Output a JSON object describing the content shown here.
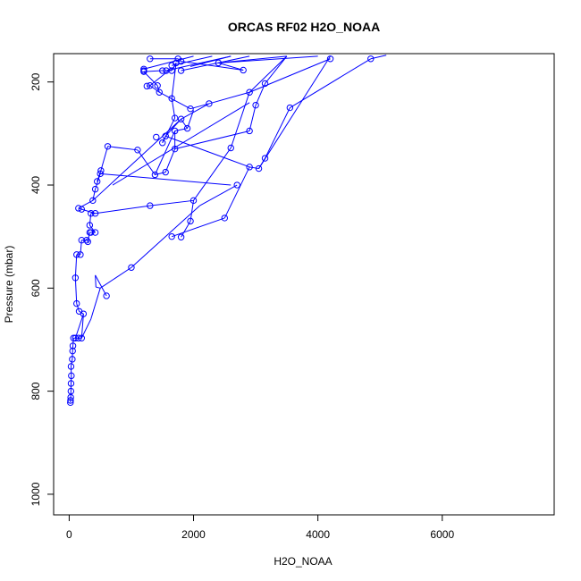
{
  "chart_data": {
    "type": "line",
    "title": "ORCAS RF02 H2O_NOAA",
    "xlabel": "H2O_NOAA",
    "ylabel": "Pressure (mbar)",
    "xlim": [
      -250,
      7800
    ],
    "ylim": [
      1040,
      145
    ],
    "y_reversed": true,
    "x_ticks": [
      0,
      2000,
      4000,
      6000
    ],
    "y_ticks": [
      200,
      400,
      600,
      800,
      1000
    ],
    "grid": false,
    "colors": {
      "series": "#0000ff",
      "axes": "#000000"
    },
    "series": [
      {
        "marker": "open-circle",
        "points": [
          [
            20,
            822
          ],
          [
            22,
            818
          ],
          [
            25,
            812
          ],
          [
            28,
            800
          ],
          [
            30,
            785
          ],
          [
            35,
            770
          ],
          [
            30,
            752
          ],
          [
            50,
            738
          ],
          [
            55,
            722
          ],
          [
            60,
            712
          ],
          [
            70,
            697
          ],
          [
            100,
            697
          ],
          [
            150,
            697
          ],
          [
            200,
            697
          ],
          [
            230,
            650
          ],
          [
            160,
            645
          ],
          [
            120,
            630
          ],
          [
            100,
            580
          ],
          [
            120,
            535
          ],
          [
            180,
            535
          ],
          [
            200,
            507
          ],
          [
            280,
            507
          ],
          [
            300,
            510
          ],
          [
            330,
            492
          ],
          [
            350,
            492
          ],
          [
            420,
            492
          ],
          [
            330,
            478
          ],
          [
            350,
            455
          ],
          [
            420,
            455
          ],
          [
            200,
            447
          ],
          [
            150,
            445
          ],
          [
            380,
            430
          ],
          [
            420,
            408
          ],
          [
            500,
            378
          ],
          [
            450,
            393
          ],
          [
            510,
            372
          ],
          [
            620,
            325
          ],
          [
            1100,
            332
          ],
          [
            1380,
            380
          ],
          [
            1550,
            375
          ],
          [
            1700,
            330
          ],
          [
            1700,
            295
          ],
          [
            1900,
            290
          ],
          [
            1800,
            272
          ],
          [
            1000,
            560
          ],
          [
            600,
            615
          ],
          [
            1650,
            500
          ],
          [
            1800,
            501
          ],
          [
            2000,
            430
          ],
          [
            1950,
            470
          ],
          [
            2500,
            464
          ],
          [
            2700,
            400
          ],
          [
            2900,
            365
          ],
          [
            3050,
            368
          ],
          [
            3150,
            348
          ],
          [
            2900,
            295
          ],
          [
            2600,
            328
          ],
          [
            2900,
            220
          ],
          [
            3000,
            245
          ],
          [
            3150,
            203
          ],
          [
            3550,
            250
          ],
          [
            4850,
            155
          ],
          [
            4200,
            155
          ],
          [
            2800,
            177
          ],
          [
            2400,
            163
          ],
          [
            1950,
            252
          ],
          [
            2250,
            242
          ],
          [
            1500,
            318
          ],
          [
            1550,
            305
          ],
          [
            1400,
            307
          ],
          [
            1300,
            440
          ],
          [
            1250,
            208
          ],
          [
            1300,
            207
          ],
          [
            1450,
            220
          ],
          [
            1420,
            207
          ],
          [
            1200,
            180
          ],
          [
            1200,
            175
          ],
          [
            1500,
            178
          ],
          [
            1560,
            178
          ],
          [
            1650,
            178
          ],
          [
            1650,
            168
          ],
          [
            1720,
            163
          ],
          [
            1650,
            232
          ],
          [
            1700,
            270
          ],
          [
            1300,
            155
          ],
          [
            1750,
            155
          ],
          [
            1800,
            160
          ],
          [
            1800,
            178
          ],
          [
            1200,
            178
          ]
        ]
      }
    ],
    "segments": [
      [
        [
          20,
          822
        ],
        [
          22,
          818
        ]
      ],
      [
        [
          22,
          818
        ],
        [
          25,
          812
        ]
      ],
      [
        [
          25,
          812
        ],
        [
          28,
          800
        ]
      ],
      [
        [
          28,
          800
        ],
        [
          30,
          785
        ]
      ],
      [
        [
          30,
          785
        ],
        [
          35,
          770
        ]
      ],
      [
        [
          35,
          770
        ],
        [
          30,
          752
        ]
      ],
      [
        [
          30,
          752
        ],
        [
          50,
          738
        ]
      ],
      [
        [
          50,
          738
        ],
        [
          55,
          722
        ]
      ],
      [
        [
          55,
          722
        ],
        [
          60,
          712
        ]
      ],
      [
        [
          60,
          712
        ],
        [
          70,
          697
        ]
      ],
      [
        [
          70,
          697
        ],
        [
          200,
          697
        ]
      ],
      [
        [
          200,
          697
        ],
        [
          230,
          650
        ]
      ],
      [
        [
          230,
          650
        ],
        [
          160,
          645
        ]
      ],
      [
        [
          160,
          645
        ],
        [
          120,
          630
        ]
      ],
      [
        [
          120,
          630
        ],
        [
          100,
          580
        ]
      ],
      [
        [
          100,
          580
        ],
        [
          120,
          535
        ]
      ],
      [
        [
          120,
          535
        ],
        [
          180,
          535
        ]
      ],
      [
        [
          180,
          535
        ],
        [
          200,
          507
        ]
      ],
      [
        [
          200,
          507
        ],
        [
          280,
          507
        ]
      ],
      [
        [
          280,
          507
        ],
        [
          300,
          510
        ]
      ],
      [
        [
          300,
          510
        ],
        [
          330,
          492
        ]
      ],
      [
        [
          330,
          492
        ],
        [
          420,
          492
        ]
      ],
      [
        [
          420,
          492
        ],
        [
          330,
          478
        ]
      ],
      [
        [
          330,
          478
        ],
        [
          350,
          455
        ]
      ],
      [
        [
          350,
          455
        ],
        [
          420,
          455
        ]
      ],
      [
        [
          420,
          455
        ],
        [
          200,
          447
        ]
      ],
      [
        [
          200,
          447
        ],
        [
          150,
          445
        ]
      ],
      [
        [
          150,
          445
        ],
        [
          380,
          430
        ]
      ],
      [
        [
          380,
          430
        ],
        [
          420,
          408
        ]
      ],
      [
        [
          420,
          408
        ],
        [
          500,
          378
        ]
      ],
      [
        [
          500,
          378
        ],
        [
          450,
          393
        ]
      ],
      [
        [
          450,
          393
        ],
        [
          510,
          372
        ]
      ],
      [
        [
          510,
          372
        ],
        [
          620,
          325
        ]
      ],
      [
        [
          620,
          325
        ],
        [
          1100,
          332
        ]
      ],
      [
        [
          1100,
          332
        ],
        [
          1380,
          380
        ]
      ],
      [
        [
          1380,
          380
        ],
        [
          1550,
          375
        ]
      ],
      [
        [
          1550,
          375
        ],
        [
          1700,
          330
        ]
      ],
      [
        [
          1700,
          330
        ],
        [
          1700,
          295
        ]
      ],
      [
        [
          1700,
          295
        ],
        [
          1900,
          290
        ]
      ],
      [
        [
          1900,
          290
        ],
        [
          1800,
          272
        ]
      ],
      [
        [
          100,
          697
        ],
        [
          230,
          650
        ]
      ],
      [
        [
          200,
          697
        ],
        [
          350,
          660
        ]
      ],
      [
        [
          350,
          660
        ],
        [
          500,
          600
        ]
      ],
      [
        [
          500,
          600
        ],
        [
          1000,
          560
        ]
      ],
      [
        [
          1000,
          560
        ],
        [
          2100,
          440
        ]
      ],
      [
        [
          2100,
          440
        ],
        [
          2700,
          400
        ]
      ],
      [
        [
          600,
          615
        ],
        [
          420,
          575
        ]
      ],
      [
        [
          420,
          575
        ],
        [
          430,
          598
        ]
      ],
      [
        [
          430,
          598
        ],
        [
          500,
          600
        ]
      ],
      [
        [
          1650,
          500
        ],
        [
          2500,
          464
        ]
      ],
      [
        [
          2500,
          464
        ],
        [
          2900,
          365
        ]
      ],
      [
        [
          2900,
          365
        ],
        [
          3050,
          368
        ]
      ],
      [
        [
          3050,
          368
        ],
        [
          3150,
          348
        ]
      ],
      [
        [
          3150,
          348
        ],
        [
          3550,
          250
        ]
      ],
      [
        [
          3550,
          250
        ],
        [
          4850,
          155
        ]
      ],
      [
        [
          1800,
          501
        ],
        [
          1950,
          470
        ]
      ],
      [
        [
          1950,
          470
        ],
        [
          2000,
          430
        ]
      ],
      [
        [
          2000,
          430
        ],
        [
          2600,
          328
        ]
      ],
      [
        [
          2600,
          328
        ],
        [
          2900,
          220
        ]
      ],
      [
        [
          2900,
          220
        ],
        [
          4200,
          155
        ]
      ],
      [
        [
          2900,
          295
        ],
        [
          3000,
          245
        ]
      ],
      [
        [
          3000,
          245
        ],
        [
          3150,
          203
        ]
      ],
      [
        [
          3150,
          203
        ],
        [
          3500,
          150
        ]
      ],
      [
        [
          1450,
          220
        ],
        [
          1950,
          252
        ]
      ],
      [
        [
          1950,
          252
        ],
        [
          2250,
          242
        ]
      ],
      [
        [
          2250,
          242
        ],
        [
          2900,
          220
        ]
      ],
      [
        [
          1500,
          318
        ],
        [
          1550,
          305
        ]
      ],
      [
        [
          1550,
          305
        ],
        [
          1800,
          272
        ]
      ],
      [
        [
          1800,
          272
        ],
        [
          2250,
          242
        ]
      ],
      [
        [
          1300,
          440
        ],
        [
          2000,
          430
        ]
      ],
      [
        [
          1300,
          440
        ],
        [
          420,
          455
        ]
      ],
      [
        [
          1250,
          208
        ],
        [
          1300,
          207
        ]
      ],
      [
        [
          1300,
          207
        ],
        [
          1450,
          220
        ]
      ],
      [
        [
          1450,
          220
        ],
        [
          1420,
          207
        ]
      ],
      [
        [
          1420,
          207
        ],
        [
          1200,
          180
        ]
      ],
      [
        [
          1200,
          180
        ],
        [
          1500,
          178
        ]
      ],
      [
        [
          1500,
          178
        ],
        [
          1650,
          178
        ]
      ],
      [
        [
          1650,
          178
        ],
        [
          1720,
          163
        ]
      ],
      [
        [
          1720,
          163
        ],
        [
          1650,
          232
        ]
      ],
      [
        [
          1650,
          232
        ],
        [
          1700,
          270
        ]
      ],
      [
        [
          1700,
          270
        ],
        [
          1500,
          318
        ]
      ],
      [
        [
          1300,
          155
        ],
        [
          1750,
          155
        ]
      ],
      [
        [
          1750,
          155
        ],
        [
          1800,
          160
        ]
      ],
      [
        [
          1800,
          160
        ],
        [
          2800,
          177
        ]
      ],
      [
        [
          2800,
          177
        ],
        [
          2400,
          163
        ]
      ],
      [
        [
          2400,
          163
        ],
        [
          3500,
          150
        ]
      ],
      [
        [
          1200,
          175
        ],
        [
          2000,
          150
        ]
      ],
      [
        [
          1560,
          178
        ],
        [
          2600,
          150
        ]
      ],
      [
        [
          1800,
          178
        ],
        [
          2900,
          150
        ]
      ],
      [
        [
          500,
          378
        ],
        [
          2600,
          400
        ]
      ],
      [
        [
          700,
          400
        ],
        [
          2900,
          240
        ]
      ],
      [
        [
          380,
          430
        ],
        [
          1800,
          272
        ]
      ],
      [
        [
          1380,
          380
        ],
        [
          1700,
          295
        ]
      ],
      [
        [
          1550,
          305
        ],
        [
          2900,
          365
        ]
      ],
      [
        [
          1700,
          330
        ],
        [
          2900,
          295
        ]
      ],
      [
        [
          2900,
          220
        ],
        [
          3500,
          150
        ]
      ],
      [
        [
          4850,
          155
        ],
        [
          5100,
          148
        ]
      ],
      [
        [
          2000,
          255
        ],
        [
          1900,
          290
        ]
      ],
      [
        [
          1650,
          168
        ],
        [
          2300,
          150
        ]
      ],
      [
        [
          1950,
          170
        ],
        [
          2600,
          150
        ]
      ],
      [
        [
          2400,
          163
        ],
        [
          4000,
          150
        ]
      ],
      [
        [
          3050,
          368
        ],
        [
          4200,
          150
        ]
      ],
      [
        [
          1300,
          207
        ],
        [
          1600,
          178
        ]
      ]
    ]
  }
}
